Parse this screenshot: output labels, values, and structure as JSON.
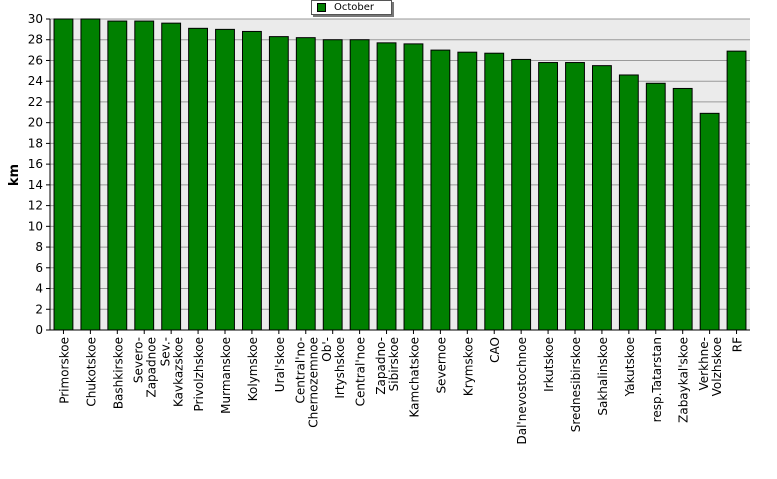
{
  "chart_data": {
    "type": "bar",
    "ylabel": "km",
    "ylim": [
      0,
      30
    ],
    "yticks": [
      0,
      2,
      4,
      6,
      8,
      10,
      12,
      14,
      16,
      18,
      20,
      22,
      24,
      26,
      28,
      30
    ],
    "grid": true,
    "legend_position": "top-center",
    "bar_color": "#008000",
    "categories": [
      "Primorskoe",
      "Chukotskoe",
      "Bashkirskoe",
      "Severo-\nZapadnoe",
      "Sev.-\nKavkazskoe",
      "Privolzhskoe",
      "Murmanskoe",
      "Kolymskoe",
      "Ural'skoe",
      "Central'no-\nChernozemnoe",
      "Ob'-\nIrtyshskoe",
      "Central'noe",
      "Zapadno-\nSibirskoe",
      "Kamchatskoe",
      "Severnoe",
      "Krymskoe",
      "CAO",
      "Dal'nevostochnoe",
      "Irkutskoe",
      "Srednesibirskoe",
      "Sakhalinskoe",
      "Yakutskoe",
      "resp.Tatarstan",
      "Zabaykal'skoe",
      "Verkhne-\nVolzhskoe",
      "RF"
    ],
    "series": [
      {
        "name": "October",
        "values": [
          30.0,
          30.0,
          29.8,
          29.8,
          29.6,
          29.1,
          29.0,
          28.8,
          28.3,
          28.2,
          28.0,
          28.0,
          27.7,
          27.6,
          27.0,
          26.8,
          26.7,
          26.1,
          25.8,
          25.8,
          25.5,
          24.6,
          23.8,
          23.3,
          20.9,
          26.9
        ]
      }
    ]
  }
}
